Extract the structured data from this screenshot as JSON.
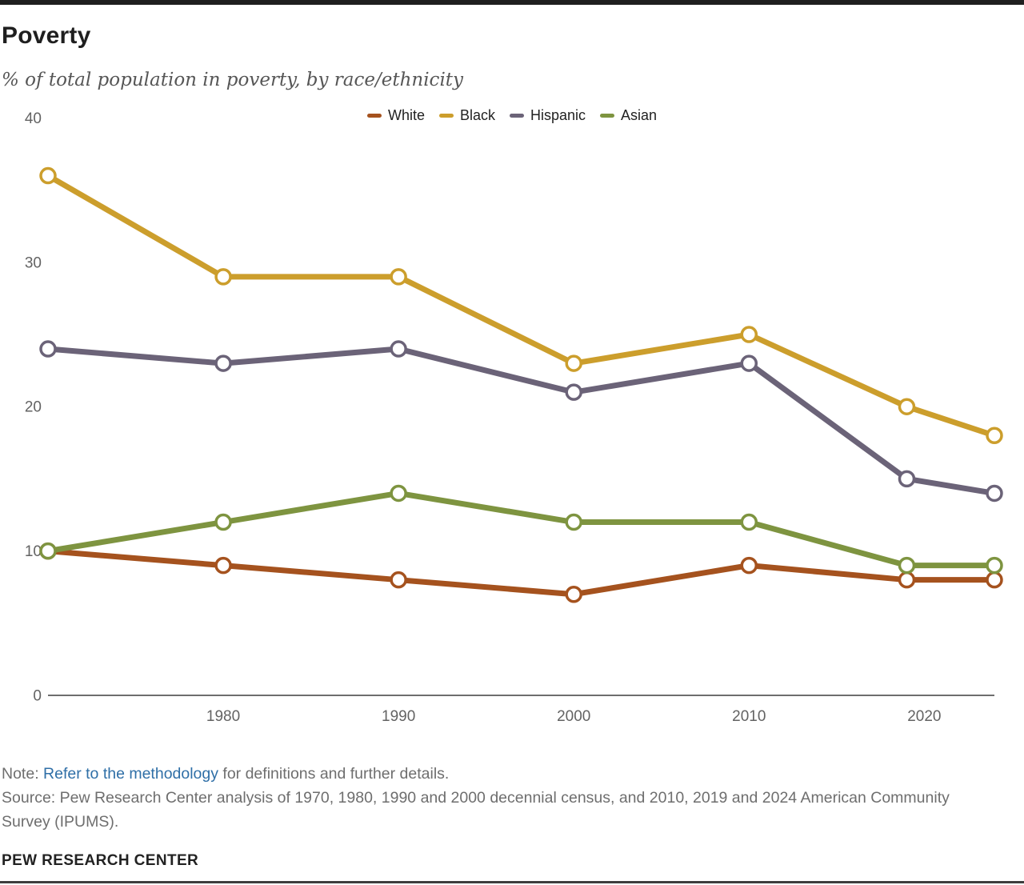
{
  "page": {
    "title": "Poverty",
    "subtitle": "% of total population in poverty, by race/ethnicity",
    "note": {
      "prefix": "Note: ",
      "link_text": "Refer to the methodology",
      "suffix": " for definitions and further details."
    },
    "source": "Source: Pew Research Center analysis of 1970, 1980, 1990 and 2000 decennial census, and 2010, 2019 and 2024 American Community Survey (IPUMS).",
    "footer": "PEW RESEARCH CENTER"
  },
  "colors": {
    "white_series": "#A5521E",
    "black_series": "#CC9E2C",
    "hispanic_series": "#6B6378",
    "asian_series": "#7E9440",
    "axis": "#6e6e6e",
    "tick_label": "#636363",
    "link": "#2f6fa7",
    "top_bar": "#1f1f1f",
    "bottom_rule": "#3d3d3d"
  },
  "chart_data": {
    "type": "line",
    "title": "Poverty",
    "subtitle": "% of total population in poverty, by race/ethnicity",
    "x": [
      1970,
      1980,
      1990,
      2000,
      2010,
      2019,
      2024
    ],
    "xlim": [
      1970,
      2024
    ],
    "ylim": [
      0,
      40
    ],
    "x_ticks": [
      1980,
      1990,
      2000,
      2010,
      2020
    ],
    "x_tick_labels": [
      "1980",
      "1990",
      "2000",
      "2010",
      "2020"
    ],
    "y_ticks": [
      0,
      10,
      20,
      30,
      40
    ],
    "grid": false,
    "legend_position": "top-center",
    "marker": "open-circle",
    "series": [
      {
        "name": "White",
        "color": "#A5521E",
        "values": [
          10,
          9,
          8,
          7,
          9,
          8,
          8
        ]
      },
      {
        "name": "Black",
        "color": "#CC9E2C",
        "values": [
          36,
          29,
          29,
          23,
          25,
          20,
          18
        ]
      },
      {
        "name": "Hispanic",
        "color": "#6B6378",
        "values": [
          24,
          23,
          24,
          21,
          23,
          15,
          14
        ]
      },
      {
        "name": "Asian",
        "color": "#7E9440",
        "values": [
          10,
          12,
          14,
          12,
          12,
          9,
          9
        ]
      }
    ]
  }
}
